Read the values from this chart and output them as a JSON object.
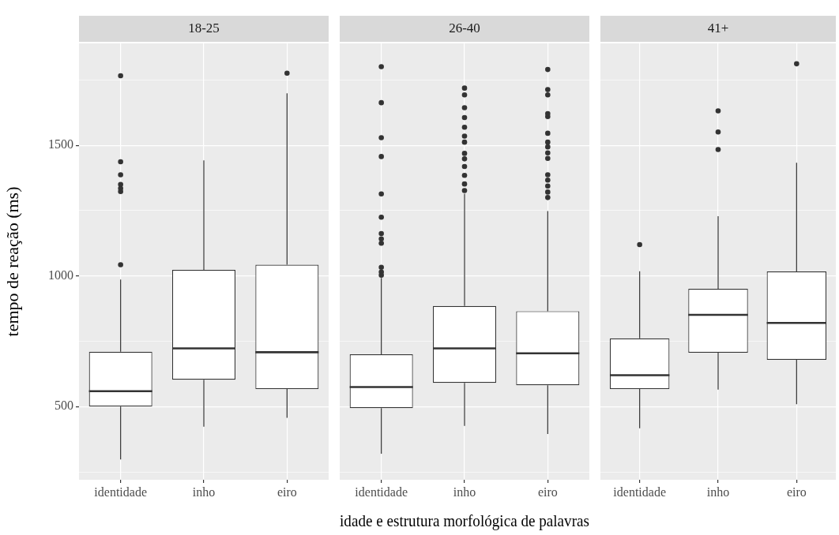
{
  "chart_data": [
    {
      "type": "box",
      "title": "18-25",
      "ylabel": "tempo de reação (ms)",
      "categories": [
        "identidade",
        "inho",
        "eiro"
      ],
      "boxes": [
        {
          "low": 298,
          "q1": 500,
          "median": 559,
          "q3": 710,
          "high": 986,
          "outliers": [
            1043,
            1323,
            1335,
            1350,
            1387,
            1437,
            1766
          ]
        },
        {
          "low": 423,
          "q1": 603,
          "median": 723,
          "q3": 1023,
          "high": 1442
        },
        {
          "low": 457,
          "q1": 567,
          "median": 708,
          "q3": 1043,
          "high": 1699,
          "outliers": [
            1776
          ]
        }
      ],
      "ylim": [
        220,
        1890
      ],
      "yticks": [
        {
          "value": 250,
          "label": null
        },
        500,
        {
          "value": 750,
          "label": null
        },
        1000,
        {
          "value": 1250,
          "label": null
        },
        1500,
        {
          "value": 1750,
          "label": null
        }
      ],
      "grid": true
    },
    {
      "type": "box",
      "title": "26-40",
      "xlabel": "idade e estrutura morfológica de palavras",
      "categories": [
        "identidade",
        "inho",
        "eiro"
      ],
      "boxes": [
        {
          "low": 320,
          "q1": 494,
          "median": 575,
          "q3": 700,
          "high": 992,
          "outliers": [
            1003,
            1015,
            1033,
            1125,
            1142,
            1162,
            1225,
            1314,
            1457,
            1529,
            1663,
            1801
          ]
        },
        {
          "low": 426,
          "q1": 591,
          "median": 723,
          "q3": 885,
          "high": 1315,
          "outliers": [
            1327,
            1352,
            1385,
            1419,
            1448,
            1469,
            1512,
            1535,
            1569,
            1606,
            1644,
            1693,
            1719
          ]
        },
        {
          "low": 395,
          "q1": 582,
          "median": 704,
          "q3": 865,
          "high": 1248,
          "outliers": [
            1300,
            1321,
            1344,
            1367,
            1387,
            1450,
            1471,
            1494,
            1512,
            1546,
            1610,
            1621,
            1693,
            1713,
            1790
          ]
        }
      ],
      "ylim": [
        220,
        1890
      ],
      "yticks": [
        {
          "value": 250,
          "label": null
        },
        500,
        {
          "value": 750,
          "label": null
        },
        1000,
        {
          "value": 1250,
          "label": null
        },
        1500,
        {
          "value": 1750,
          "label": null
        }
      ],
      "tick_labels": "x",
      "grid": true
    },
    {
      "type": "box",
      "title": "41+",
      "categories": [
        "identidade",
        "inho",
        "eiro"
      ],
      "boxes": [
        {
          "low": 417,
          "q1": 567,
          "median": 620,
          "q3": 761,
          "high": 1018,
          "outliers": [
            1120
          ]
        },
        {
          "low": 565,
          "q1": 706,
          "median": 851,
          "q3": 951,
          "high": 1229,
          "outliers": [
            1484,
            1551,
            1632
          ]
        },
        {
          "low": 509,
          "q1": 679,
          "median": 820,
          "q3": 1017,
          "high": 1433,
          "outliers": [
            1812
          ]
        }
      ],
      "ylim": [
        220,
        1890
      ],
      "yticks": [
        {
          "value": 250,
          "label": null
        },
        500,
        {
          "value": 750,
          "label": null
        },
        1000,
        {
          "value": 1250,
          "label": null
        },
        1500,
        {
          "value": 1750,
          "label": null
        }
      ],
      "tick_labels": "x",
      "grid": true
    }
  ]
}
